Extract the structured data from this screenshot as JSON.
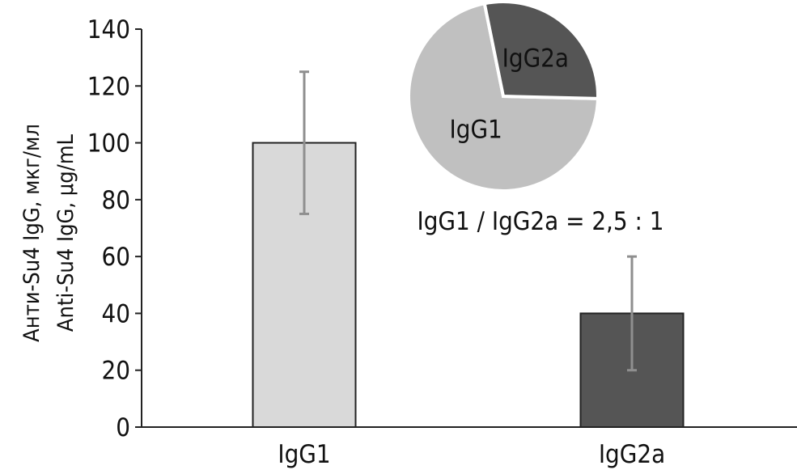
{
  "chart_data": [
    {
      "type": "bar",
      "categories": [
        "IgG1",
        "IgG2a"
      ],
      "values": [
        100,
        40
      ],
      "error": [
        25,
        20
      ],
      "ylabel_lines": [
        "Анти-Su4 IgG, мкг/мл",
        "Anti-Su4 IgG, µg/mL"
      ],
      "ylim": [
        0,
        140
      ],
      "yticks": [
        "0",
        "20",
        "40",
        "60",
        "80",
        "100",
        "120",
        "140"
      ],
      "grid": false,
      "colors": [
        "#d9d9d9",
        "#555555"
      ]
    },
    {
      "type": "pie",
      "categories": [
        "IgG1",
        "IgG2a"
      ],
      "values": [
        2.5,
        1
      ],
      "colors": [
        "#c0c0c0",
        "#555555"
      ],
      "annotation": "IgG1 / IgG2a = 2,5 : 1"
    }
  ]
}
